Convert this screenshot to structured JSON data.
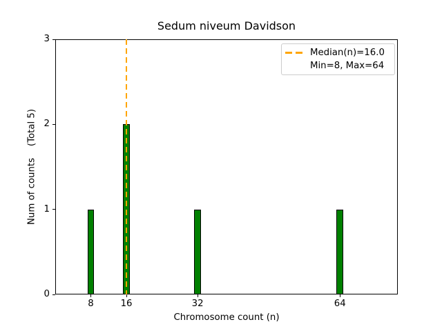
{
  "chart_data": {
    "type": "bar",
    "title": "Sedum niveum Davidson",
    "xlabel": "Chromosome count (n)",
    "ylabel": "Num of counts    (Total 5)",
    "total_counts": 5,
    "categories": [
      8,
      16,
      32,
      64
    ],
    "values": [
      1,
      2,
      1,
      1
    ],
    "x_tick_labels": [
      "8",
      "16",
      "32",
      "64"
    ],
    "y_tick_labels": [
      "0",
      "1",
      "2",
      "3"
    ],
    "xlim": [
      0,
      77
    ],
    "ylim": [
      0,
      3
    ],
    "bar_width_n_units": 1.5,
    "grid": false,
    "median_line": {
      "x": 16,
      "style": "dashed"
    },
    "legend": {
      "position": "upper-right",
      "entries": [
        {
          "label": "Median(n)=16.0",
          "swatch": "orange-dashed-line"
        },
        {
          "label": "Min=8, Max=64",
          "swatch": "none"
        }
      ]
    },
    "colors": {
      "bar_fill": "#008000",
      "bar_edge": "#000000",
      "median_line": "#ffa500",
      "legend_border": "#cccccc",
      "text": "#000000",
      "background": "#ffffff"
    }
  }
}
